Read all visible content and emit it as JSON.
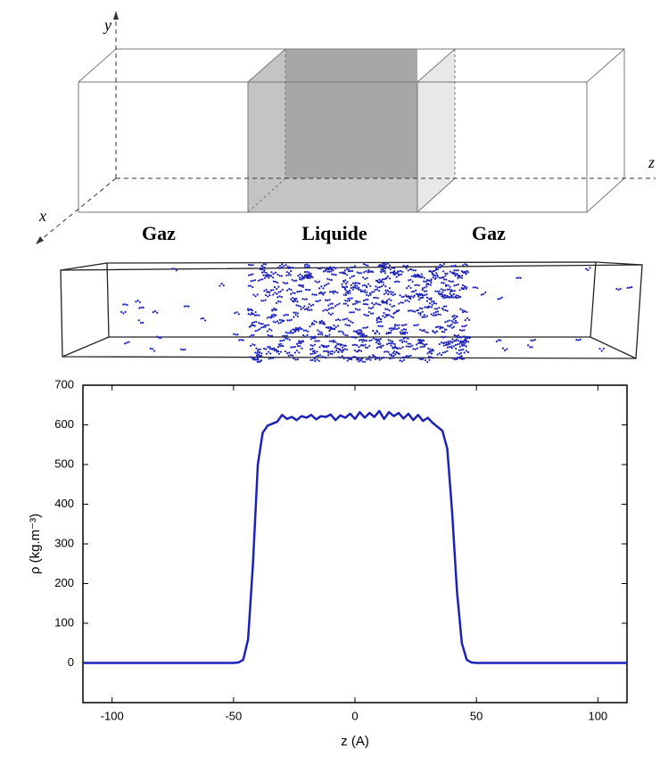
{
  "diagram": {
    "axis_labels": {
      "y": "y",
      "z": "z",
      "x": "x"
    },
    "phase_labels": [
      "Gaz",
      "Liquide",
      "Gaz"
    ]
  },
  "chart_data": {
    "type": "line",
    "xlabel": "z (A)",
    "ylabel": "ρ (kg.m⁻³)",
    "color": "#1c22b8",
    "x": [
      -112,
      -100,
      -90,
      -80,
      -70,
      -60,
      -50,
      -48,
      -46,
      -44,
      -42,
      -40,
      -38,
      -36,
      -34,
      -32,
      -30,
      -28,
      -26,
      -24,
      -22,
      -20,
      -18,
      -16,
      -14,
      -12,
      -10,
      -8,
      -6,
      -4,
      -2,
      0,
      2,
      4,
      6,
      8,
      10,
      12,
      14,
      16,
      18,
      20,
      22,
      24,
      26,
      28,
      30,
      32,
      34,
      36,
      38,
      40,
      42,
      44,
      46,
      48,
      50,
      60,
      70,
      80,
      90,
      100,
      112
    ],
    "values": [
      0,
      0,
      0,
      0,
      0,
      0,
      0,
      1,
      8,
      60,
      250,
      500,
      580,
      598,
      603,
      608,
      625,
      615,
      620,
      612,
      622,
      618,
      625,
      614,
      622,
      620,
      626,
      612,
      624,
      618,
      628,
      615,
      632,
      618,
      630,
      620,
      635,
      615,
      632,
      622,
      630,
      616,
      628,
      612,
      625,
      610,
      618,
      605,
      595,
      585,
      540,
      380,
      180,
      50,
      8,
      1,
      0,
      0,
      0,
      0,
      0,
      0,
      0
    ],
    "xlim": [
      -112,
      112
    ],
    "xticks": [
      -100,
      -50,
      0,
      50,
      100
    ],
    "ylim": [
      -100,
      700
    ],
    "yticks": [
      0,
      100,
      200,
      300,
      400,
      500,
      600,
      700
    ]
  }
}
